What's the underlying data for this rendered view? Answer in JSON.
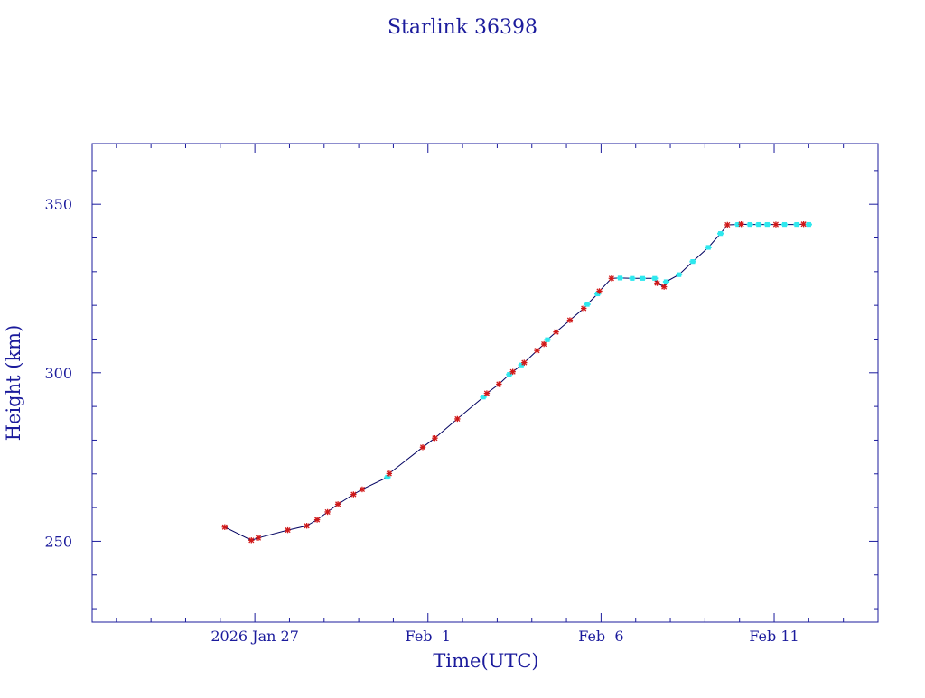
{
  "colors": {
    "text": "#1b1b9c",
    "axis": "#1b1b9c",
    "line": "#000060",
    "marker_red": "#d01818",
    "marker_cyan": "#2ee8ee",
    "background": "#ffffff"
  },
  "chart_data": {
    "type": "line",
    "title": "Starlink 36398",
    "xlabel": "Time(UTC)",
    "ylabel": "Height (km)",
    "x_unit": "days since 2026-01-27 00:00 UTC",
    "xlim": [
      -4.7,
      18.0
    ],
    "ylim": [
      226.0,
      368.0
    ],
    "x_ticks": [
      {
        "value": 0,
        "label": "2026 Jan 27"
      },
      {
        "value": 5,
        "label": "Feb  1"
      },
      {
        "value": 10,
        "label": "Feb  6"
      },
      {
        "value": 15,
        "label": "Feb 11"
      }
    ],
    "y_ticks": [
      {
        "value": 250,
        "label": "250"
      },
      {
        "value": 300,
        "label": "300"
      },
      {
        "value": 350,
        "label": "350"
      }
    ],
    "grid": false,
    "series": [
      {
        "name": "",
        "points": [
          {
            "x": -0.87,
            "y": 254.2,
            "m": "red"
          },
          {
            "x": -0.1,
            "y": 250.3,
            "m": "red"
          },
          {
            "x": 0.1,
            "y": 251.0,
            "m": "red"
          },
          {
            "x": 0.95,
            "y": 253.3,
            "m": "red"
          },
          {
            "x": 1.5,
            "y": 254.6,
            "m": "red"
          },
          {
            "x": 1.8,
            "y": 256.4,
            "m": "red"
          },
          {
            "x": 2.1,
            "y": 258.7,
            "m": "red"
          },
          {
            "x": 2.4,
            "y": 261.0,
            "m": "red"
          },
          {
            "x": 2.85,
            "y": 263.9,
            "m": "red"
          },
          {
            "x": 3.1,
            "y": 265.4,
            "m": "red"
          },
          {
            "x": 3.83,
            "y": 269.0,
            "m": "cyan"
          },
          {
            "x": 3.88,
            "y": 270.1,
            "m": "red"
          },
          {
            "x": 4.85,
            "y": 277.9,
            "m": "red"
          },
          {
            "x": 5.2,
            "y": 280.6,
            "m": "red"
          },
          {
            "x": 5.85,
            "y": 286.3,
            "m": "red"
          },
          {
            "x": 6.6,
            "y": 292.8,
            "m": "cyan"
          },
          {
            "x": 6.7,
            "y": 293.9,
            "m": "red"
          },
          {
            "x": 7.05,
            "y": 296.6,
            "m": "red"
          },
          {
            "x": 7.35,
            "y": 299.5,
            "m": "cyan"
          },
          {
            "x": 7.45,
            "y": 300.3,
            "m": "red"
          },
          {
            "x": 7.7,
            "y": 302.3,
            "m": "cyan"
          },
          {
            "x": 7.78,
            "y": 303.0,
            "m": "red"
          },
          {
            "x": 8.15,
            "y": 306.6,
            "m": "red"
          },
          {
            "x": 8.35,
            "y": 308.5,
            "m": "red"
          },
          {
            "x": 8.45,
            "y": 309.8,
            "m": "cyan"
          },
          {
            "x": 8.7,
            "y": 312.1,
            "m": "red"
          },
          {
            "x": 9.1,
            "y": 315.6,
            "m": "red"
          },
          {
            "x": 9.5,
            "y": 319.1,
            "m": "red"
          },
          {
            "x": 9.6,
            "y": 320.3,
            "m": "cyan"
          },
          {
            "x": 9.9,
            "y": 323.4,
            "m": "cyan"
          },
          {
            "x": 9.95,
            "y": 324.2,
            "m": "red"
          },
          {
            "x": 10.3,
            "y": 328.0,
            "m": "red"
          },
          {
            "x": 10.55,
            "y": 328.1,
            "m": "cyan"
          },
          {
            "x": 10.9,
            "y": 328.0,
            "m": "cyan"
          },
          {
            "x": 11.2,
            "y": 328.0,
            "m": "cyan"
          },
          {
            "x": 11.55,
            "y": 328.0,
            "m": "cyan"
          },
          {
            "x": 11.62,
            "y": 326.6,
            "m": "red"
          },
          {
            "x": 11.82,
            "y": 325.5,
            "m": "red"
          },
          {
            "x": 11.88,
            "y": 327.0,
            "m": "cyan"
          },
          {
            "x": 12.25,
            "y": 329.1,
            "m": "cyan"
          },
          {
            "x": 12.65,
            "y": 333.0,
            "m": "cyan"
          },
          {
            "x": 13.1,
            "y": 337.2,
            "m": "cyan"
          },
          {
            "x": 13.45,
            "y": 341.3,
            "m": "cyan"
          },
          {
            "x": 13.65,
            "y": 343.9,
            "m": "red"
          },
          {
            "x": 13.95,
            "y": 344.0,
            "m": "cyan"
          },
          {
            "x": 14.05,
            "y": 344.1,
            "m": "red"
          },
          {
            "x": 14.3,
            "y": 344.0,
            "m": "cyan"
          },
          {
            "x": 14.55,
            "y": 344.0,
            "m": "cyan"
          },
          {
            "x": 14.8,
            "y": 344.0,
            "m": "cyan"
          },
          {
            "x": 15.05,
            "y": 344.0,
            "m": "red"
          },
          {
            "x": 15.3,
            "y": 344.0,
            "m": "cyan"
          },
          {
            "x": 15.65,
            "y": 344.0,
            "m": "cyan"
          },
          {
            "x": 15.85,
            "y": 344.1,
            "m": "red"
          },
          {
            "x": 16.0,
            "y": 344.0,
            "m": "cyan"
          }
        ]
      }
    ]
  }
}
